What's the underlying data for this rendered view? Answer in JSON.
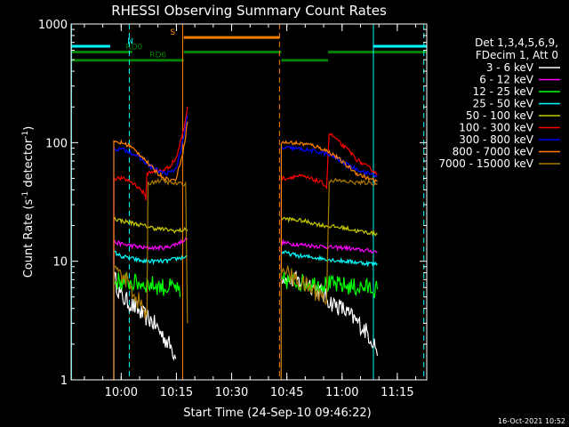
{
  "chart_data": {
    "type": "line",
    "title": "RHESSI Observing Summary Count Rates",
    "xlabel": "Start Time (24-Sep-10 09:46:22)",
    "ylabel_main": "Count Rate (s",
    "ylabel_mid": " detector",
    "ylabel_end": ")",
    "ylabel_sup": "-1",
    "yscale": "log",
    "ylim": [
      1,
      1000
    ],
    "y_ticks": [
      {
        "value": 1,
        "label": "1"
      },
      {
        "value": 10,
        "label": "10"
      },
      {
        "value": 100,
        "label": "100"
      },
      {
        "value": 1000,
        "label": "1000"
      }
    ],
    "xlim_minutes": [
      46.4,
      143.0
    ],
    "x_ticks": [
      {
        "minute": 60,
        "label": "10:00"
      },
      {
        "minute": 75,
        "label": "10:15"
      },
      {
        "minute": 90,
        "label": "10:30"
      },
      {
        "minute": 105,
        "label": "10:45"
      },
      {
        "minute": 120,
        "label": "11:00"
      },
      {
        "minute": 135,
        "label": "11:15"
      }
    ],
    "legend_header": [
      "Det 1,3,4,5,6,9,",
      "FDecim 1, Att 0"
    ],
    "legend_position": "right",
    "series": [
      {
        "name": "3 - 6 keV",
        "color": "#ffffff",
        "segments": [
          {
            "x": [
              58.0,
              60.0,
              62.0,
              64.0,
              66.0,
              68.0,
              70.0,
              72.0,
              74.0,
              74.8
            ],
            "y": [
              7.5,
              5.0,
              4.5,
              4.0,
              3.5,
              3.2,
              2.7,
              2.2,
              1.8,
              1.5
            ]
          },
          {
            "x": [
              103.5,
              105.0,
              108.0,
              111.0,
              114.0,
              117.0,
              120.0,
              123.0,
              126.0,
              129.0,
              129.6
            ],
            "y": [
              7.5,
              7.0,
              6.8,
              6.5,
              5.5,
              4.5,
              4.0,
              3.3,
              2.7,
              2.0,
              1.6
            ]
          }
        ]
      },
      {
        "name": "6 - 12 keV",
        "color": "#ff00ff",
        "segments": [
          {
            "x": [
              58.0,
              60.0,
              63.0,
              66.0,
              69.0,
              72.0,
              75.0,
              78.0
            ],
            "y": [
              14.5,
              14.0,
              13.5,
              13.0,
              13.0,
              13.0,
              14.0,
              15.5
            ]
          },
          {
            "x": [
              103.5,
              106.0,
              109.0,
              112.0,
              115.0,
              118.0,
              121.0,
              124.0,
              127.0,
              129.6
            ],
            "y": [
              14.5,
              14.0,
              13.8,
              13.5,
              13.3,
              13.0,
              13.0,
              12.5,
              12.3,
              12.0
            ]
          }
        ]
      },
      {
        "name": "12 - 25 keV",
        "color": "#00ff00",
        "segments": [
          {
            "x": [
              58.0,
              60.0,
              63.0,
              66.0,
              69.0,
              72.0,
              75.0,
              76.0
            ],
            "y": [
              6.8,
              6.8,
              6.6,
              6.5,
              6.3,
              6.0,
              6.0,
              5.0
            ]
          },
          {
            "x": [
              103.5,
              106.0,
              109.0,
              112.0,
              115.0,
              118.0,
              121.0,
              124.0,
              127.0,
              129.6
            ],
            "y": [
              6.8,
              6.8,
              6.6,
              6.5,
              6.4,
              6.3,
              6.2,
              6.0,
              6.0,
              5.8
            ]
          }
        ]
      },
      {
        "name": "25 - 50 keV",
        "color": "#00ffff",
        "segments": [
          {
            "x": [
              58.0,
              60.0,
              63.0,
              66.0,
              69.0,
              72.0,
              75.0,
              78.0
            ],
            "y": [
              12.0,
              11.0,
              10.5,
              10.0,
              10.0,
              10.0,
              10.5,
              11.0
            ]
          },
          {
            "x": [
              103.5,
              106.0,
              109.0,
              112.0,
              115.0,
              118.0,
              121.0,
              124.0,
              127.0,
              129.6
            ],
            "y": [
              12.0,
              11.5,
              11.0,
              10.8,
              10.5,
              10.2,
              10.0,
              9.8,
              9.6,
              9.5
            ]
          }
        ]
      },
      {
        "name": "50 - 100 keV",
        "color": "#c8c800",
        "segments": [
          {
            "x": [
              58.0,
              60.0,
              63.0,
              66.0,
              69.0,
              72.0,
              75.0,
              78.0
            ],
            "y": [
              23.0,
              22.0,
              21.0,
              20.0,
              19.0,
              18.5,
              18.0,
              18.5
            ]
          },
          {
            "x": [
              103.5,
              106.0,
              109.0,
              112.0,
              115.0,
              118.0,
              121.0,
              124.0,
              127.0,
              129.6
            ],
            "y": [
              23.0,
              22.5,
              22.0,
              21.0,
              20.0,
              19.5,
              19.0,
              18.0,
              17.5,
              17.0
            ]
          }
        ]
      },
      {
        "name": "100 - 300 keV",
        "color": "#ff0000",
        "segments": [
          {
            "x": [
              58.0,
              60.0,
              62.0,
              64.0,
              66.0,
              66.7,
              67.0,
              69.0,
              71.0,
              73.0,
              75.0,
              77.0,
              78.0
            ],
            "y": [
              50.0,
              50.0,
              48.0,
              44.0,
              38.0,
              34.0,
              55.0,
              58.0,
              58.0,
              62.0,
              75.0,
              130.0,
              200.0
            ]
          },
          {
            "x": [
              103.5,
              105.0,
              107.0,
              109.0,
              111.0,
              113.0,
              115.0,
              115.8,
              116.5,
              118.0,
              120.0,
              122.0,
              124.0,
              126.0,
              129.6
            ],
            "y": [
              50.0,
              50.0,
              52.0,
              52.0,
              50.0,
              48.0,
              45.0,
              42.0,
              120.0,
              110.0,
              95.0,
              85.0,
              72.0,
              65.0,
              55.0
            ]
          }
        ]
      },
      {
        "name": "300 - 800 keV",
        "color": "#0000ff",
        "segments": [
          {
            "x": [
              58.0,
              60.0,
              62.0,
              64.0,
              66.0,
              68.0,
              70.0,
              72.0,
              74.0,
              75.0,
              77.0,
              78.0
            ],
            "y": [
              88.0,
              88.0,
              85.0,
              78.0,
              70.0,
              63.0,
              58.0,
              55.0,
              57.0,
              62.0,
              110.0,
              170.0
            ]
          },
          {
            "x": [
              103.5,
              106.0,
              109.0,
              112.0,
              115.0,
              118.0,
              121.0,
              124.0,
              127.0,
              129.6
            ],
            "y": [
              90.0,
              90.0,
              88.0,
              85.0,
              82.0,
              75.0,
              66.0,
              60.0,
              55.0,
              53.0
            ]
          }
        ]
      },
      {
        "name": "800 - 7000 keV",
        "color": "#ff8000",
        "segments": [
          {
            "x": [
              58.0,
              60.0,
              62.0,
              64.0,
              66.0,
              68.0,
              70.0,
              72.0,
              74.0,
              75.0,
              77.0,
              78.0
            ],
            "y": [
              100.0,
              100.0,
              95.0,
              85.0,
              75.0,
              63.0,
              55.0,
              50.0,
              48.0,
              50.0,
              90.0,
              150.0
            ]
          },
          {
            "x": [
              103.5,
              106.0,
              109.0,
              112.0,
              115.0,
              118.0,
              121.0,
              124.0,
              127.0,
              129.6
            ],
            "y": [
              100.0,
              100.0,
              98.0,
              95.0,
              88.0,
              78.0,
              65.0,
              55.0,
              50.0,
              47.0
            ]
          }
        ]
      },
      {
        "name": "7000 - 15000 keV",
        "color": "#aa7700",
        "segments": [
          {
            "x": [
              58.0,
              60.0,
              62.0,
              64.0,
              66.0,
              67.0,
              67.3,
              69.0,
              71.0,
              73.0,
              75.0,
              76.0,
              77.5,
              78.0
            ],
            "y": [
              9.0,
              8.0,
              6.5,
              5.0,
              4.0,
              3.3,
              45.0,
              47.0,
              48.0,
              46.0,
              45.0,
              45.0,
              45.0,
              3.0
            ]
          },
          {
            "x": [
              103.5,
              105.0,
              107.0,
              109.0,
              111.0,
              113.0,
              115.0,
              115.8,
              116.5,
              118.0,
              121.0,
              124.0,
              127.0,
              129.6
            ],
            "y": [
              8.5,
              8.0,
              7.0,
              6.5,
              6.0,
              5.5,
              5.0,
              4.5,
              48.0,
              48.0,
              47.0,
              46.0,
              46.0,
              45.0
            ]
          }
        ]
      }
    ],
    "flags": [
      {
        "name": "N",
        "label": "N",
        "color": "#00ffff",
        "level": 650,
        "label_minute": 62.5,
        "segments": [
          [
            46.4,
            57.0
          ],
          [
            128.5,
            143.0
          ]
        ]
      },
      {
        "name": "S",
        "label": "S",
        "color": "#ff8000",
        "level": 770,
        "label_minute": 74.0,
        "segments": [
          [
            77.0,
            103.0
          ]
        ]
      },
      {
        "name": "RD0",
        "label": "RD0",
        "color": "#008000",
        "level": 580,
        "label_minute": 63.5,
        "segments": [
          [
            46.4,
            63.0
          ],
          [
            77.0,
            103.5
          ],
          [
            116.2,
            143.0
          ]
        ]
      },
      {
        "name": "RD6",
        "label": "RD6",
        "color": "#008000",
        "level": 495,
        "label_minute": 70.0,
        "segments": [
          [
            46.4,
            77.0
          ],
          [
            103.5,
            116.2
          ]
        ]
      }
    ],
    "night_boundaries": [
      {
        "minute": 46.5,
        "style": "solid",
        "color": "#00ffff"
      },
      {
        "minute": 62.2,
        "style": "dashed",
        "color": "#00ffff"
      },
      {
        "minute": 128.5,
        "style": "solid",
        "color": "#00ffff"
      },
      {
        "minute": 142.2,
        "style": "dashed",
        "color": "#00ffff"
      },
      {
        "minute": 76.7,
        "style": "solid",
        "color": "#ff8000"
      },
      {
        "minute": 103.0,
        "style": "dashed",
        "color": "#ff8000"
      }
    ],
    "timestamp": "16-Oct-2021 10:52"
  }
}
